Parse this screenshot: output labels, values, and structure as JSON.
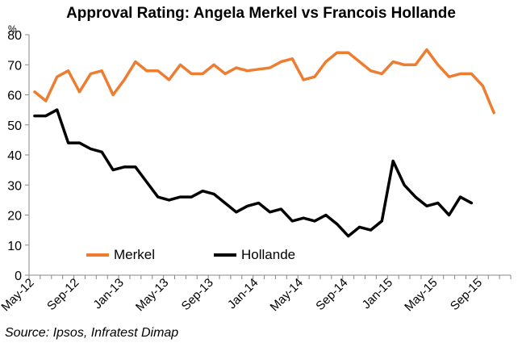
{
  "colors": {
    "merkel": "#ED7D31",
    "hollande": "#000000",
    "axis": "#888888"
  },
  "chart_data": {
    "type": "line",
    "title": "Approval Rating: Angela Merkel vs Francois Hollande",
    "unit_label": "%",
    "xlabel": "",
    "ylabel": "",
    "ylim": [
      0,
      80
    ],
    "y_ticks": [
      0,
      10,
      20,
      30,
      40,
      50,
      60,
      70,
      80
    ],
    "grid": false,
    "legend_position": "bottom-left inside",
    "x": [
      "May-12",
      "Jun-12",
      "Jul-12",
      "Aug-12",
      "Sep-12",
      "Oct-12",
      "Nov-12",
      "Dec-12",
      "Jan-13",
      "Feb-13",
      "Mar-13",
      "Apr-13",
      "May-13",
      "Jun-13",
      "Jul-13",
      "Aug-13",
      "Sep-13",
      "Oct-13",
      "Nov-13",
      "Dec-13",
      "Jan-14",
      "Feb-14",
      "Mar-14",
      "Apr-14",
      "May-14",
      "Jun-14",
      "Jul-14",
      "Aug-14",
      "Sep-14",
      "Oct-14",
      "Nov-14",
      "Dec-14",
      "Jan-15",
      "Feb-15",
      "Mar-15",
      "Apr-15",
      "May-15",
      "Jun-15",
      "Jul-15",
      "Aug-15",
      "Sep-15",
      "Oct-15",
      "Nov-15"
    ],
    "x_tick_labels": [
      "May-12",
      "Sep-12",
      "Jan-13",
      "May-13",
      "Sep-13",
      "Jan-14",
      "May-14",
      "Sep-14",
      "Jan-15",
      "May-15",
      "Sep-15"
    ],
    "series": [
      {
        "name": "Merkel",
        "values": [
          61,
          58,
          66,
          68,
          61,
          67,
          68,
          60,
          65,
          71,
          68,
          68,
          65,
          70,
          67,
          67,
          70,
          67,
          69,
          68,
          68.5,
          69,
          71,
          72,
          65,
          66,
          71,
          74,
          74,
          71,
          68,
          67,
          71,
          70,
          70,
          75,
          70,
          66,
          67,
          67,
          63,
          54,
          null
        ]
      },
      {
        "name": "Hollande",
        "values": [
          53,
          53,
          55,
          44,
          44,
          42,
          41,
          35,
          36,
          36,
          31,
          26,
          25,
          26,
          26,
          28,
          27,
          24,
          21,
          23,
          24,
          21,
          22,
          18,
          19,
          18,
          20,
          17,
          13,
          16,
          15,
          18,
          38,
          30,
          26,
          23,
          24,
          20,
          26,
          24,
          null,
          null,
          null
        ]
      }
    ],
    "source": "Source: Ipsos, Infratest Dimap"
  }
}
